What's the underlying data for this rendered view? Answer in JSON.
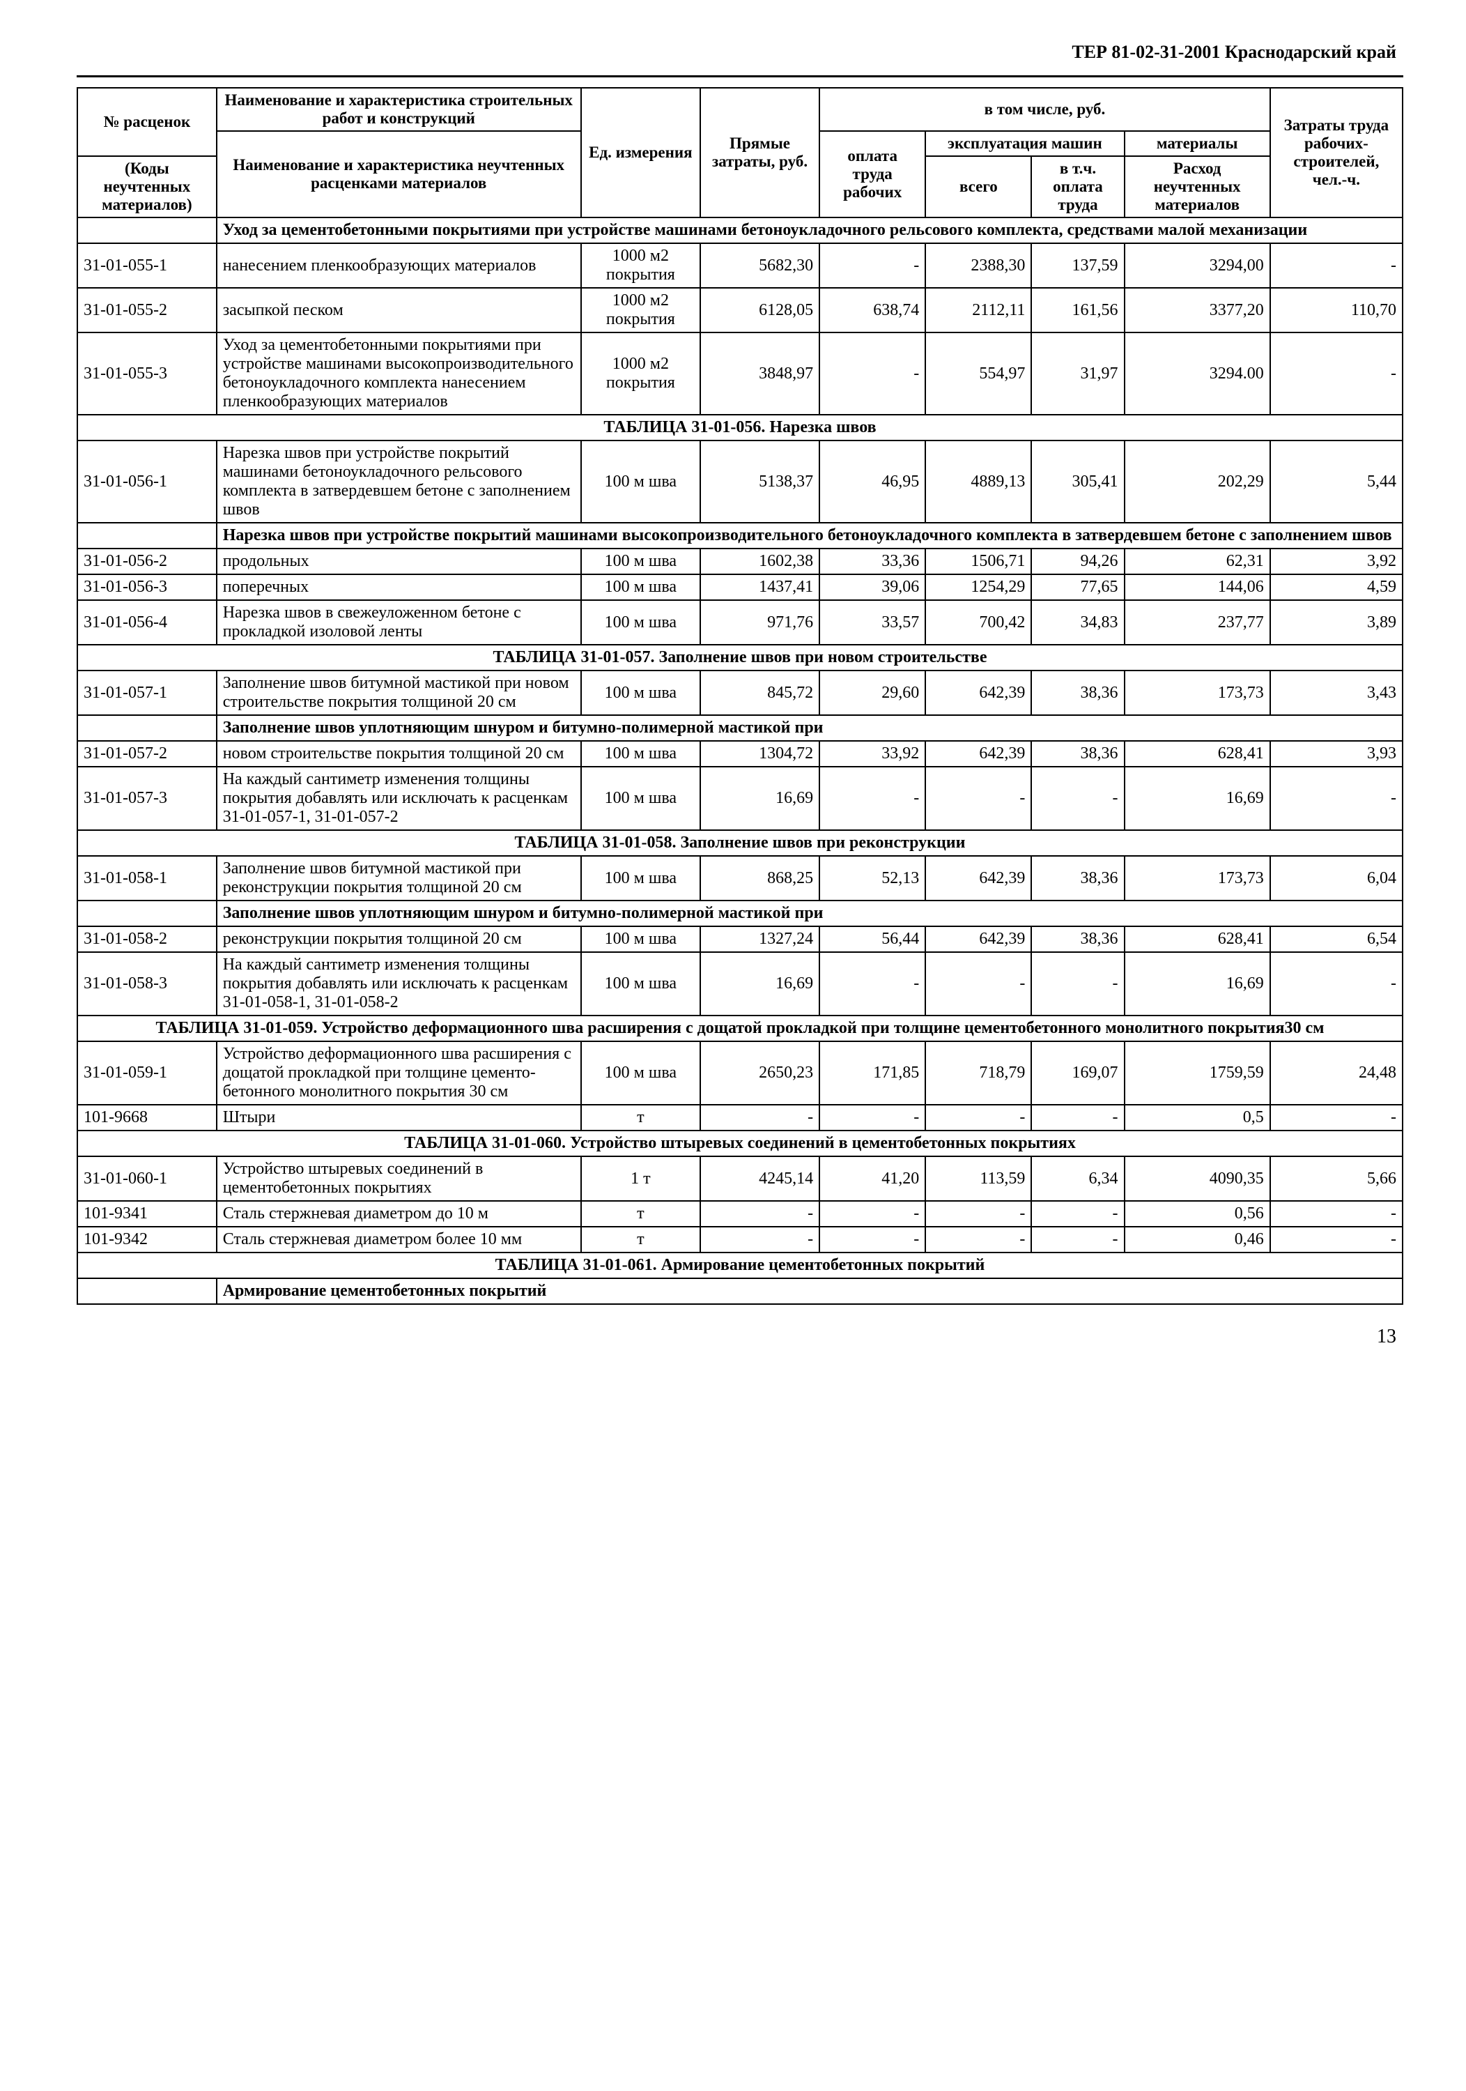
{
  "doc_header": "ТЕР 81-02-31-2001   Краснодарский край",
  "page_number": "13",
  "header": {
    "col1_top": "№ расценок",
    "col1_bot": "(Коды неучтенных материалов)",
    "col2_top": "Наименование и характеристика строительных работ и конструкций",
    "col2_bot": "Наименование и характеристика неучтенных расценками материалов",
    "col3": "Ед. измерения",
    "col4": "Прямые затраты, руб.",
    "group": "в том числе, руб.",
    "col5": "оплата труда рабочих",
    "group2": "эксплуатация машин",
    "col6": "всего",
    "col7": "в т.ч. оплата труда",
    "col8_top": "материалы",
    "col8_bot": "Расход неучтенных материалов",
    "col9": "Затраты труда рабочих-строителей, чел.-ч."
  },
  "sections": {
    "s055_intro": "Уход за цементобетонными покрытиями при устройстве машинами бетоноукладочного рельсового комплекта, средствами малой механизации",
    "s056_title": "ТАБЛИЦА 31-01-056. Нарезка швов",
    "s056_intro": "Нарезка швов при устройстве покрытий машинами высокопроизводительного бетоноукладочного комплекта в затвердевшем бетоне с заполнением швов",
    "s057_title": "ТАБЛИЦА 31-01-057. Заполнение швов при новом строительстве",
    "s057_intro": "Заполнение швов уплотняющим шнуром и битумно-полимерной мастикой при",
    "s058_title": "ТАБЛИЦА 31-01-058. Заполнение швов при реконструкции",
    "s058_intro": "Заполнение швов уплотняющим шнуром и битумно-полимерной мастикой при",
    "s059_title": "ТАБЛИЦА 31-01-059. Устройство деформационного шва расширения с дощатой прокладкой при толщине цементобетонного монолитного покрытия30 см",
    "s060_title": "ТАБЛИЦА 31-01-060. Устройство штыревых соединений в цементобетонных покрытиях",
    "s061_title": "ТАБЛИЦА 31-01-061. Армирование цементобетонных покрытий",
    "s061_intro": "Армирование цементобетонных покрытий"
  },
  "rows": [
    {
      "code": "31-01-055-1",
      "name": "нанесением пленкообразующих материалов",
      "unit": "1000 м2 покрытия",
      "c4": "5682,30",
      "c5": "-",
      "c6": "2388,30",
      "c7": "137,59",
      "c8": "3294,00",
      "c9": "-"
    },
    {
      "code": "31-01-055-2",
      "name": "засыпкой песком",
      "unit": "1000 м2 покрытия",
      "c4": "6128,05",
      "c5": "638,74",
      "c6": "2112,11",
      "c7": "161,56",
      "c8": "3377,20",
      "c9": "110,70"
    },
    {
      "code": "31-01-055-3",
      "name": "Уход за цементобетонными покрытиями при устройстве машинами высокопроизводительного бетоноукладочного комплекта нанесением пленкообразующих материалов",
      "unit": "1000 м2 покрытия",
      "c4": "3848,97",
      "c5": "-",
      "c6": "554,97",
      "c7": "31,97",
      "c8": "3294.00",
      "c9": "-"
    },
    {
      "code": "31-01-056-1",
      "name": "Нарезка швов при устройстве покрытий машинами бетоноукладочного рельсового комплекта в затвердевшем бетоне с заполнением швов",
      "unit": "100 м шва",
      "c4": "5138,37",
      "c5": "46,95",
      "c6": "4889,13",
      "c7": "305,41",
      "c8": "202,29",
      "c9": "5,44"
    },
    {
      "code": "31-01-056-2",
      "name": "продольных",
      "unit": "100 м шва",
      "c4": "1602,38",
      "c5": "33,36",
      "c6": "1506,71",
      "c7": "94,26",
      "c8": "62,31",
      "c9": "3,92"
    },
    {
      "code": "31-01-056-3",
      "name": "поперечных",
      "unit": "100 м шва",
      "c4": "1437,41",
      "c5": "39,06",
      "c6": "1254,29",
      "c7": "77,65",
      "c8": "144,06",
      "c9": "4,59"
    },
    {
      "code": "31-01-056-4",
      "name": "Нарезка швов в свежеуложенном бетоне с прокладкой изоловой ленты",
      "unit": "100 м шва",
      "c4": "971,76",
      "c5": "33,57",
      "c6": "700,42",
      "c7": "34,83",
      "c8": "237,77",
      "c9": "3,89"
    },
    {
      "code": "31-01-057-1",
      "name": "Заполнение швов битумной мастикой при новом строительстве покрытия толщиной 20 см",
      "unit": "100 м шва",
      "c4": "845,72",
      "c5": "29,60",
      "c6": "642,39",
      "c7": "38,36",
      "c8": "173,73",
      "c9": "3,43"
    },
    {
      "code": "31-01-057-2",
      "name": "новом строительстве покрытия толщиной 20 см",
      "unit": "100 м шва",
      "c4": "1304,72",
      "c5": "33,92",
      "c6": "642,39",
      "c7": "38,36",
      "c8": "628,41",
      "c9": "3,93"
    },
    {
      "code": "31-01-057-3",
      "name": "На каждый сантиметр изменения толщины покрытия добавлять или исключать к расценкам 31-01-057-1, 31-01-057-2",
      "unit": "100 м шва",
      "c4": "16,69",
      "c5": "-",
      "c6": "-",
      "c7": "-",
      "c8": "16,69",
      "c9": "-"
    },
    {
      "code": "31-01-058-1",
      "name": "Заполнение швов битумной мастикой при реконструкции покрытия толщиной 20 см",
      "unit": "100 м шва",
      "c4": "868,25",
      "c5": "52,13",
      "c6": "642,39",
      "c7": "38,36",
      "c8": "173,73",
      "c9": "6,04"
    },
    {
      "code": "31-01-058-2",
      "name": "реконструкции покрытия толщиной 20 см",
      "unit": "100 м шва",
      "c4": "1327,24",
      "c5": "56,44",
      "c6": "642,39",
      "c7": "38,36",
      "c8": "628,41",
      "c9": "6,54"
    },
    {
      "code": "31-01-058-3",
      "name": "На каждый сантиметр изменения толщины покрытия добавлять или исключать к расценкам 31-01-058-1, 31-01-058-2",
      "unit": "100 м шва",
      "c4": "16,69",
      "c5": "-",
      "c6": "-",
      "c7": "-",
      "c8": "16,69",
      "c9": "-"
    },
    {
      "code": "31-01-059-1",
      "name": "Устройство деформационного шва расширения с дощатой прокладкой при толщине цементо-бетонного монолитного покрытия 30 см",
      "unit": "100 м шва",
      "c4": "2650,23",
      "c5": "171,85",
      "c6": "718,79",
      "c7": "169,07",
      "c8": "1759,59",
      "c9": "24,48"
    },
    {
      "code": "101-9668",
      "name": "Штыри",
      "unit": "т",
      "c4": "-",
      "c5": "-",
      "c6": "-",
      "c7": "-",
      "c8": "0,5",
      "c9": "-"
    },
    {
      "code": "31-01-060-1",
      "name": "Устройство штыревых соединений в цементобетонных покрытиях",
      "unit": "1 т",
      "c4": "4245,14",
      "c5": "41,20",
      "c6": "113,59",
      "c7": "6,34",
      "c8": "4090,35",
      "c9": "5,66"
    },
    {
      "code": "101-9341",
      "name": "Сталь стержневая диаметром до 10 м",
      "unit": "т",
      "c4": "-",
      "c5": "-",
      "c6": "-",
      "c7": "-",
      "c8": "0,56",
      "c9": "-"
    },
    {
      "code": "101-9342",
      "name": "Сталь стержневая диаметром более 10 мм",
      "unit": "т",
      "c4": "-",
      "c5": "-",
      "c6": "-",
      "c7": "-",
      "c8": "0,46",
      "c9": "-"
    }
  ]
}
